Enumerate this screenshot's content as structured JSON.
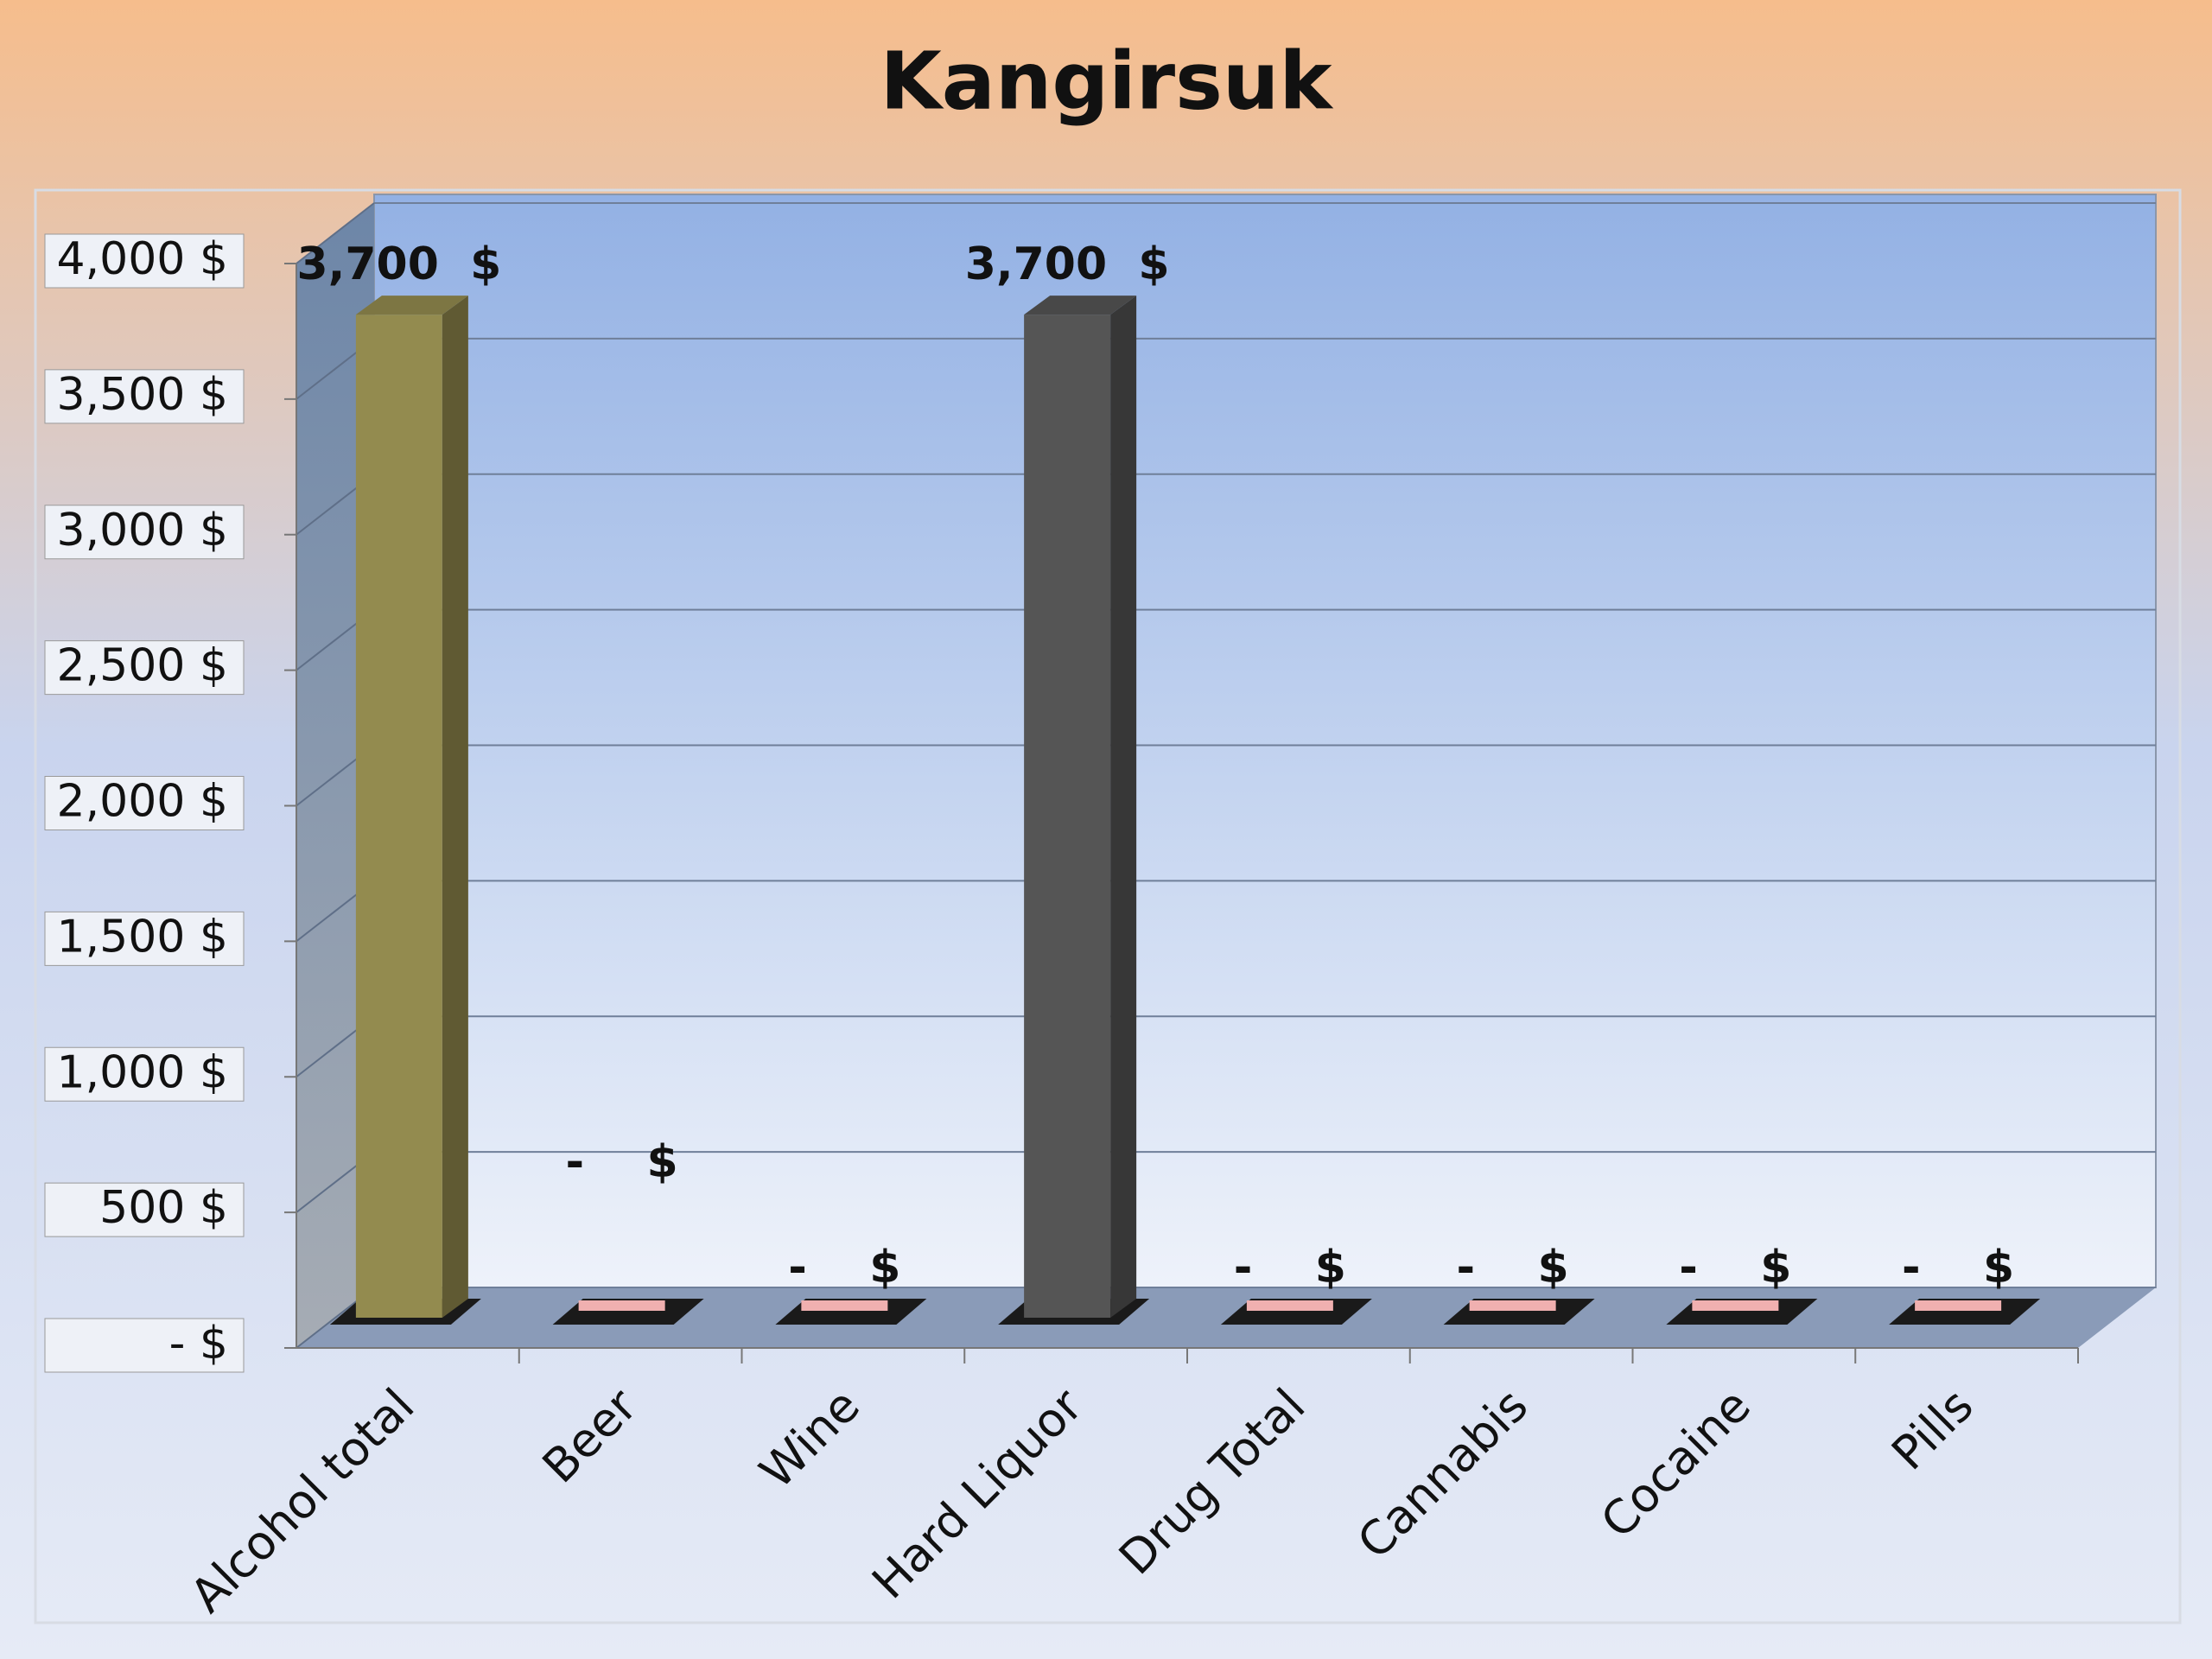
{
  "chart_data": {
    "type": "bar",
    "title": "Kangirsuk",
    "categories": [
      "Alcohol total",
      "Beer",
      "Wine",
      "Hard Liquor",
      "Drug Total",
      "Cannabis",
      "Cocaine",
      "Pills"
    ],
    "values": [
      3700,
      0,
      0,
      3700,
      0,
      0,
      0,
      0
    ],
    "value_labels": [
      "3,700  $",
      "-    $",
      "-    $",
      "3,700  $",
      "-    $",
      "-    $",
      "-    $",
      "-    $"
    ],
    "colors": [
      "#938b4f",
      "#e8a0a0",
      "#e8a0a0",
      "#555555",
      "#e8a0a0",
      "#e8a0a0",
      "#e8a0a0",
      "#e8a0a0"
    ],
    "ylim": [
      0,
      4000
    ],
    "yticks": [
      {
        "value": 0,
        "label": "-    $"
      },
      {
        "value": 500,
        "label": "500 $"
      },
      {
        "value": 1000,
        "label": "1,000 $"
      },
      {
        "value": 1500,
        "label": "1,500 $"
      },
      {
        "value": 2000,
        "label": "2,000 $"
      },
      {
        "value": 2500,
        "label": "2,500 $"
      },
      {
        "value": 3000,
        "label": "3,000 $"
      },
      {
        "value": 3500,
        "label": "3,500 $"
      },
      {
        "value": 4000,
        "label": "4,000 $"
      }
    ],
    "grid": true
  }
}
